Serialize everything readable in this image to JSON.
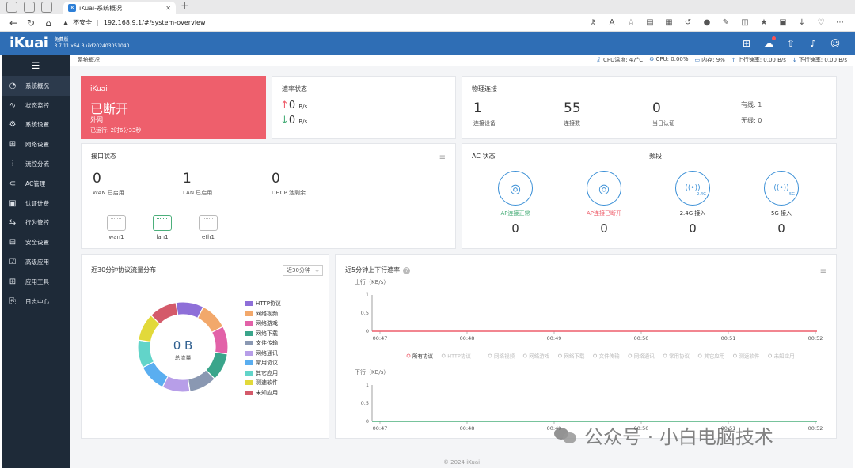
{
  "browser": {
    "tab_title": "iKuai-系统概况",
    "tab_favicon": "iK",
    "not_secure": "不安全",
    "url": "192.168.9.1/#/system-overview"
  },
  "header": {
    "logo": "iKuai",
    "edition": "免费版",
    "build": "3.7.11 x64 Build202403051040"
  },
  "sidebar": {
    "items": [
      {
        "label": "系统概况",
        "icon": "dashboard-icon",
        "glyph": "◔",
        "active": true
      },
      {
        "label": "状态监控",
        "icon": "monitor-icon",
        "glyph": "∿"
      },
      {
        "label": "系统设置",
        "icon": "gear-icon",
        "glyph": "⚙"
      },
      {
        "label": "网络设置",
        "icon": "network-icon",
        "glyph": "⊞"
      },
      {
        "label": "流控分流",
        "icon": "flow-control-icon",
        "glyph": "⫶"
      },
      {
        "label": "AC管理",
        "icon": "ac-icon",
        "glyph": "⊂"
      },
      {
        "label": "认证计费",
        "icon": "auth-icon",
        "glyph": "▣"
      },
      {
        "label": "行为管控",
        "icon": "behavior-icon",
        "glyph": "⇆"
      },
      {
        "label": "安全设置",
        "icon": "security-icon",
        "glyph": "⊟"
      },
      {
        "label": "高级应用",
        "icon": "advanced-icon",
        "glyph": "☑"
      },
      {
        "label": "应用工具",
        "icon": "tools-icon",
        "glyph": "⊞"
      },
      {
        "label": "日志中心",
        "icon": "log-icon",
        "glyph": "⎘"
      }
    ]
  },
  "breadcrumb": "系统概况",
  "status_bar": {
    "cpu_temp": "CPU温度: 47°C",
    "cpu": "CPU: 0.00%",
    "memory": "内存: 9%",
    "upload": "上行速率: 0.00 B/s",
    "download": "下行速率: 0.00 B/s"
  },
  "wan_card": {
    "brand": "iKuai",
    "state": "已断开",
    "type": "外网",
    "uptime": "已运行: 2时6分33秒"
  },
  "speed_card": {
    "title": "速率状态",
    "up_value": "0",
    "down_value": "0",
    "unit": "B/s"
  },
  "physical_card": {
    "title": "物理连接",
    "devices_value": "1",
    "devices_label": "连接设备",
    "conns_value": "55",
    "conns_label": "连接数",
    "auth_value": "0",
    "auth_label": "当日认证",
    "wired": "有线: 1",
    "wireless": "无线: 0"
  },
  "iface_card": {
    "title": "接口状态",
    "wan_value": "0",
    "wan_label": "WAN 已启用",
    "lan_value": "1",
    "lan_label": "LAN 已启用",
    "dhcp_value": "0",
    "dhcp_label": "DHCP 池剩余",
    "ports": [
      {
        "name": "wan1",
        "up": false
      },
      {
        "name": "lan1",
        "up": true
      },
      {
        "name": "eth1",
        "up": false
      }
    ]
  },
  "ac_card": {
    "title": "AC 状态",
    "band_title": "频段",
    "items": [
      {
        "label": "AP连接正常",
        "value": "0",
        "color": "#4caf7b",
        "icon": "ap-icon"
      },
      {
        "label": "AP连接已断开",
        "value": "0",
        "color": "#ee5f6c",
        "icon": "ap-icon"
      },
      {
        "label": "2.4G 接入",
        "value": "0",
        "color": "#333333",
        "icon": "wifi-24g-icon",
        "badge": "2.4G"
      },
      {
        "label": "5G 接入",
        "value": "0",
        "color": "#333333",
        "icon": "wifi-5g-icon",
        "badge": "5G"
      }
    ]
  },
  "proto_card": {
    "title": "近30分钟协议流量分布",
    "select": "近30分钟",
    "total_value": "0 B",
    "total_label": "总流量",
    "legend": [
      {
        "label": "HTTP协议",
        "color": "#8e6fd8"
      },
      {
        "label": "网络视频",
        "color": "#f2a86b"
      },
      {
        "label": "网络游戏",
        "color": "#e262a8"
      },
      {
        "label": "网络下载",
        "color": "#3aa58b"
      },
      {
        "label": "文件传输",
        "color": "#8a98b2"
      },
      {
        "label": "网络通讯",
        "color": "#b79ee8"
      },
      {
        "label": "常用协议",
        "color": "#5aaef0"
      },
      {
        "label": "其它应用",
        "color": "#62d4c9"
      },
      {
        "label": "测速软件",
        "color": "#e2d93a"
      },
      {
        "label": "未知应用",
        "color": "#d45a6a"
      }
    ]
  },
  "rate_card": {
    "title": "近5分钟上下行速率",
    "up_label": "上行（KB/s）",
    "down_label": "下行（KB/s）",
    "y_ticks": [
      "1",
      "0.5",
      "0"
    ],
    "x_ticks": [
      "00:47",
      "00:48",
      "00:49",
      "00:50",
      "00:51",
      "00:52"
    ],
    "legend": [
      "所有协议",
      "HTTP协议",
      "网络视频",
      "网络游戏",
      "网络下载",
      "文件传输",
      "网络通讯",
      "常用协议",
      "其它应用",
      "测速软件",
      "未知应用"
    ],
    "up_color": "#ee5f6c",
    "down_color": "#4caf7b"
  },
  "chart_data": [
    {
      "type": "pie",
      "title": "近30分钟协议流量分布",
      "categories": [
        "HTTP协议",
        "网络视频",
        "网络游戏",
        "网络下载",
        "文件传输",
        "网络通讯",
        "常用协议",
        "其它应用",
        "测速软件",
        "未知应用"
      ],
      "values": [
        0,
        0,
        0,
        0,
        0,
        0,
        0,
        0,
        0,
        0
      ]
    },
    {
      "type": "line",
      "title": "近5分钟上下行速率",
      "ylabel": "上行（KB/s）",
      "x": [
        "00:47",
        "00:48",
        "00:49",
        "00:50",
        "00:51",
        "00:52"
      ],
      "ylim": [
        0,
        1
      ],
      "series": [
        {
          "name": "所有协议",
          "values": [
            0,
            0,
            0,
            0,
            0,
            0
          ]
        }
      ]
    },
    {
      "type": "line",
      "ylabel": "下行（KB/s）",
      "x": [
        "00:47",
        "00:48",
        "00:49",
        "00:50",
        "00:51",
        "00:52"
      ],
      "ylim": [
        0,
        1
      ],
      "series": [
        {
          "name": "所有协议",
          "values": [
            0,
            0,
            0,
            0,
            0,
            0
          ]
        }
      ]
    }
  ],
  "footer": "© 2024 iKuai",
  "watermark": "公众号 · 小白电脑技术"
}
